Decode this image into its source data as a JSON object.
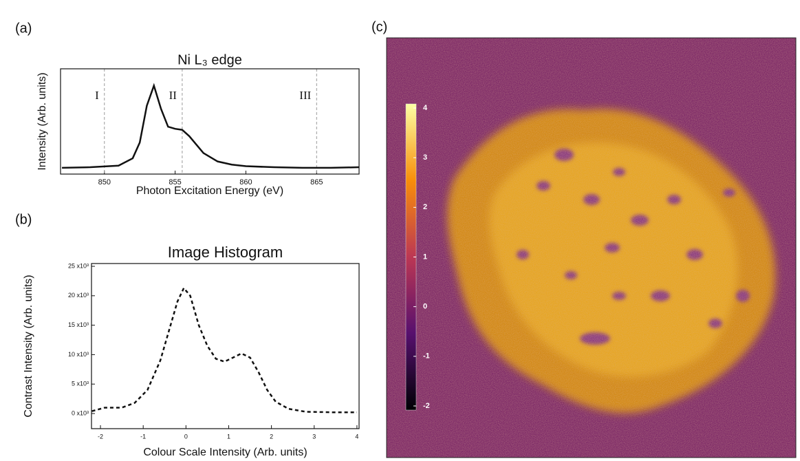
{
  "chart_data": [
    {
      "type": "line",
      "panel_label": "(a)",
      "title": "Ni L₃ edge",
      "x_label": "Photon Excitation Energy (eV)",
      "y_label": "Intensity (Arb. units)",
      "xlim": [
        846.9,
        868
      ],
      "ylim": [
        0,
        1
      ],
      "xticks": [
        850,
        855,
        860,
        865
      ],
      "x": [
        847,
        849,
        851,
        852,
        852.5,
        853,
        853.5,
        854,
        854.5,
        855,
        855.5,
        856,
        856.5,
        857,
        858,
        859,
        860,
        862,
        864,
        866,
        868
      ],
      "series": [
        {
          "color": "#111111",
          "dashed": false,
          "values": [
            0.06,
            0.065,
            0.08,
            0.15,
            0.3,
            0.65,
            0.84,
            0.62,
            0.45,
            0.43,
            0.42,
            0.36,
            0.28,
            0.2,
            0.12,
            0.09,
            0.075,
            0.065,
            0.06,
            0.06,
            0.065
          ]
        }
      ],
      "markers": [
        {
          "x": 850,
          "label": "I"
        },
        {
          "x": 855.5,
          "label": "II"
        },
        {
          "x": 865,
          "label": "III"
        }
      ]
    },
    {
      "type": "line",
      "panel_label": "(b)",
      "title": "Image Histogram",
      "x_label": "Colour Scale Intensity (Arb. units)",
      "y_label": "Contrast Intensity (Arb. units)",
      "xlim": [
        -2.21,
        4.05
      ],
      "ylim": [
        -2570,
        25470
      ],
      "xticks": [
        -2,
        -1,
        0,
        1,
        2,
        3,
        4
      ],
      "yticks": [
        {
          "value": 0,
          "label": "0 x10³"
        },
        {
          "value": 5000,
          "label": "5 x10³"
        },
        {
          "value": 10000,
          "label": "10 x10³"
        },
        {
          "value": 15000,
          "label": "15 x10³"
        },
        {
          "value": 20000,
          "label": "20 x10³"
        },
        {
          "value": 25000,
          "label": "25 x10³"
        }
      ],
      "x": [
        -2.2,
        -1.9,
        -1.5,
        -1.2,
        -0.9,
        -0.6,
        -0.4,
        -0.2,
        -0.05,
        0.1,
        0.3,
        0.5,
        0.7,
        0.9,
        1.1,
        1.3,
        1.5,
        1.7,
        1.9,
        2.1,
        2.4,
        2.8,
        3.5,
        4.0
      ],
      "series": [
        {
          "color": "#111111",
          "dashed": true,
          "values": [
            400,
            1000,
            1000,
            1800,
            4000,
            9000,
            14000,
            19000,
            21300,
            20000,
            15000,
            11500,
            9300,
            8800,
            9500,
            10200,
            9500,
            7000,
            4000,
            2000,
            800,
            300,
            200,
            200
          ]
        }
      ]
    },
    {
      "type": "image",
      "panel_label": "(c)",
      "clim": [
        -2,
        4
      ],
      "colorbar_ticks": [
        -2,
        -1,
        0,
        1,
        2,
        3,
        4
      ],
      "colors": [
        "#000004",
        "#57106e",
        "#bc3754",
        "#f98e09",
        "#fcffa4"
      ]
    }
  ]
}
